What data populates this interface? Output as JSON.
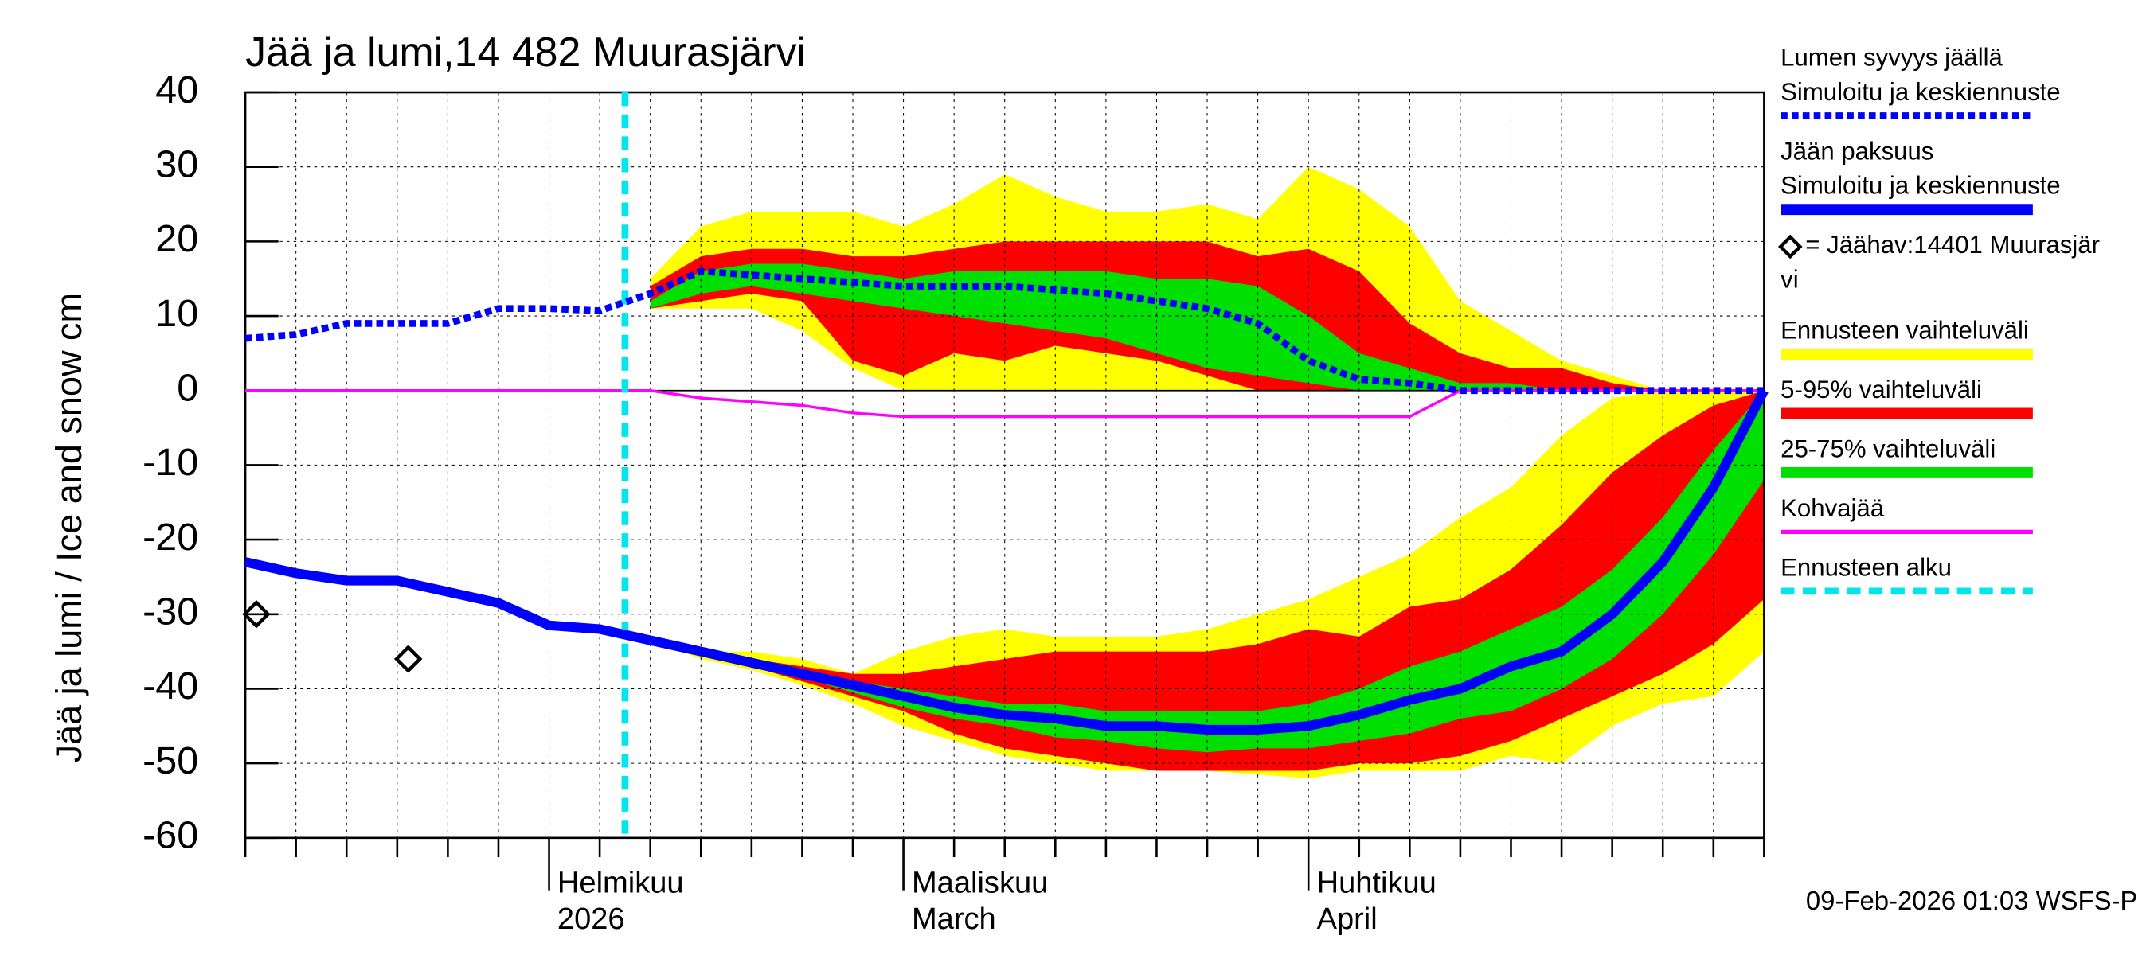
{
  "chart_data": {
    "type": "line",
    "title": "Jää ja lumi,14 482 Muurasjärvi",
    "y_label": "Jää ja lumi / Ice and snow    cm",
    "footer": "09-Feb-2026 01:03 WSFS-P",
    "categories": [
      null,
      null,
      null,
      null,
      null,
      null,
      [
        "Helmikuu",
        "2026"
      ],
      null,
      null,
      null,
      null,
      null,
      null,
      [
        "Maaliskuu",
        "March"
      ],
      null,
      null,
      null,
      null,
      null,
      null,
      null,
      [
        "Huhtikuu",
        "April"
      ],
      null,
      null,
      null,
      null,
      null,
      null,
      null,
      null,
      null
    ],
    "ylim": [
      -60,
      40
    ],
    "yticks": [
      -60,
      -50,
      -40,
      -30,
      -20,
      -10,
      0,
      10,
      20,
      30,
      40
    ],
    "grid": true,
    "series": [
      {
        "name": [
          "Lumen syvyys jäällä",
          "Simuloitu ja keskiennuste"
        ],
        "color": "#0000ff",
        "style": "dotted",
        "values": [
          7,
          7.5,
          9,
          9,
          9,
          11,
          11,
          10.7,
          13,
          16,
          15.5,
          15,
          14.5,
          14,
          14,
          14,
          13.5,
          13,
          12,
          11,
          9,
          4,
          1.5,
          1,
          0,
          0,
          0,
          0,
          0,
          0,
          0
        ]
      },
      {
        "name": [
          "Jään paksuus",
          "Simuloitu ja keskiennuste"
        ],
        "color": "#0000ff",
        "style": "solid",
        "values": [
          -23,
          -24.5,
          -25.5,
          -25.5,
          -27,
          -28.5,
          -31.5,
          -32,
          -33.5,
          -35,
          -36.5,
          -38,
          -39.5,
          -41,
          -42.5,
          -43.5,
          -44,
          -45,
          -45,
          -45.5,
          -45.5,
          -45,
          -43.5,
          -41.5,
          -40,
          -37,
          -35,
          -30,
          -23,
          -13,
          0
        ]
      }
    ],
    "observations": {
      "name": [
        "= Jäähav:14401 Muurasjär",
        "vi"
      ],
      "color": "#000000",
      "values": [
        -30,
        null,
        null,
        -36,
        null,
        null,
        null,
        null,
        null,
        null,
        null,
        null,
        null,
        null,
        null,
        null,
        null,
        null,
        null,
        null,
        null,
        null,
        null,
        null,
        null,
        null,
        null,
        null,
        null,
        null,
        null
      ]
    },
    "bands": [
      {
        "name": [
          "Ennusteen vaihteluväli"
        ],
        "color": "#ffff00",
        "snow_high": [
          null,
          null,
          null,
          null,
          null,
          null,
          null,
          null,
          15,
          22,
          24,
          24,
          24,
          22,
          25,
          29,
          26,
          24,
          24,
          25,
          23,
          30,
          27,
          22,
          12,
          8,
          4,
          2,
          0,
          0,
          0
        ],
        "snow_low": [
          null,
          null,
          null,
          null,
          null,
          null,
          null,
          null,
          11,
          11,
          11,
          8,
          3,
          0,
          0,
          0,
          0,
          0,
          0,
          0,
          0,
          0,
          0,
          0,
          0,
          0,
          0,
          0,
          0,
          0,
          0
        ],
        "ice_high": [
          null,
          null,
          null,
          null,
          null,
          null,
          null,
          null,
          -33.5,
          -35,
          -35,
          -36,
          -38,
          -35,
          -33,
          -32,
          -33,
          -33,
          -33,
          -32,
          -30,
          -28,
          -25,
          -22,
          -17,
          -13,
          -6,
          -1,
          0,
          0,
          0
        ],
        "ice_low": [
          null,
          null,
          null,
          null,
          null,
          null,
          null,
          null,
          -33.5,
          -36,
          -37.5,
          -39.5,
          -42,
          -45,
          -47,
          -49,
          -50,
          -51,
          -51,
          -51,
          -51.5,
          -52,
          -51,
          -51,
          -51,
          -49,
          -50,
          -45,
          -42,
          -41,
          -35
        ]
      },
      {
        "name": [
          "5-95% vaihteluväli"
        ],
        "color": "#ff0000",
        "snow_high": [
          null,
          null,
          null,
          null,
          null,
          null,
          null,
          null,
          14,
          18,
          19,
          19,
          18,
          18,
          19,
          20,
          20,
          20,
          20,
          20,
          18,
          19,
          16,
          9,
          5,
          3,
          3,
          1,
          0,
          0,
          0
        ],
        "snow_low": [
          null,
          null,
          null,
          null,
          null,
          null,
          null,
          null,
          11,
          12,
          13,
          12,
          4,
          2,
          5,
          4,
          6,
          5,
          4,
          2,
          0,
          0,
          0,
          0,
          0,
          0,
          0,
          0,
          0,
          0,
          0
        ],
        "ice_high": [
          null,
          null,
          null,
          null,
          null,
          null,
          null,
          null,
          -33.5,
          -35,
          -36,
          -37,
          -38,
          -38,
          -37,
          -36,
          -35,
          -35,
          -35,
          -35,
          -34,
          -32,
          -33,
          -29,
          -28,
          -24,
          -18,
          -11,
          -6,
          -2,
          0
        ],
        "ice_low": [
          null,
          null,
          null,
          null,
          null,
          null,
          null,
          null,
          -33.5,
          -35.5,
          -37,
          -39,
          -41,
          -43,
          -46,
          -48,
          -49,
          -50,
          -51,
          -51,
          -51,
          -51,
          -50,
          -50,
          -49,
          -47,
          -44,
          -41,
          -38,
          -34,
          -28
        ]
      },
      {
        "name": [
          "25-75% vaihteluväli"
        ],
        "color": "#00e000",
        "snow_high": [
          null,
          null,
          null,
          null,
          null,
          null,
          null,
          null,
          12,
          16,
          17,
          17,
          16,
          15,
          16,
          16,
          16,
          16,
          15,
          15,
          14,
          10,
          5,
          3,
          1,
          1,
          0,
          0,
          0,
          0,
          0
        ],
        "snow_low": [
          null,
          null,
          null,
          null,
          null,
          null,
          null,
          null,
          11,
          13,
          14,
          13,
          12,
          11,
          10,
          9,
          8,
          7,
          5,
          3,
          2,
          1,
          0,
          0,
          0,
          0,
          0,
          0,
          0,
          0,
          0
        ],
        "ice_high": [
          null,
          null,
          null,
          null,
          null,
          null,
          null,
          null,
          -33.5,
          -35,
          -36,
          -37.5,
          -39,
          -40,
          -41,
          -42,
          -42,
          -43,
          -43,
          -43,
          -43,
          -42,
          -40,
          -37,
          -35,
          -32,
          -29,
          -24,
          -17,
          -8,
          0
        ],
        "ice_low": [
          null,
          null,
          null,
          null,
          null,
          null,
          null,
          null,
          -33.5,
          -35.5,
          -37,
          -38.5,
          -40.5,
          -42.5,
          -44,
          -45,
          -46.5,
          -47,
          -48,
          -48.5,
          -48,
          -48,
          -47,
          -46,
          -44,
          -43,
          -40,
          -36,
          -30,
          -22,
          -12
        ]
      }
    ],
    "kohva": {
      "name": [
        "Kohvajää"
      ],
      "color": "#ff00ff",
      "values": [
        0,
        0,
        0,
        0,
        0,
        0,
        0,
        0,
        0,
        -1,
        -1.5,
        -2,
        -3,
        -3.5,
        -3.5,
        -3.5,
        -3.5,
        -3.5,
        -3.5,
        -3.5,
        -3.5,
        -3.5,
        -3.5,
        -3.5,
        0,
        0,
        0,
        0,
        0,
        0,
        0
      ]
    },
    "forecast_start": {
      "name": [
        "Ennusteen alku"
      ],
      "color": "#00e5ee",
      "x": 7.5
    }
  }
}
